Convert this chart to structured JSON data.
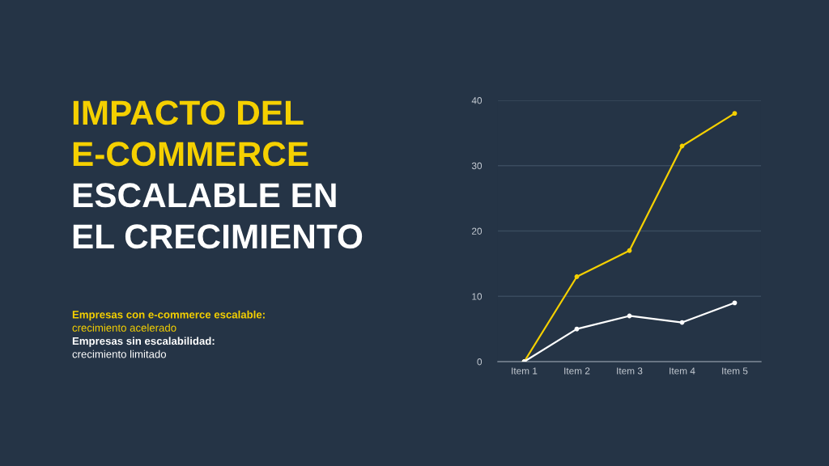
{
  "chart_data": {
    "type": "line",
    "title": "IMPACTO DEL\nE-COMMERCE\nESCALABLE EN\nEL CRECIMIENTO",
    "categories": [
      "Item 1",
      "Item 2",
      "Item 3",
      "Item 4",
      "Item 5"
    ],
    "series": [
      {
        "name": "Empresas con e-commerce escalable:",
        "color": "#f5d000",
        "values": [
          0,
          13,
          17,
          33,
          38
        ]
      },
      {
        "name": "Empresas sin escalabilidad:",
        "color": "#ffffff",
        "values": [
          0,
          5,
          7,
          6,
          9
        ]
      }
    ],
    "annotations": [
      "crecimiento acelerado",
      "crecimiento limitado"
    ],
    "ylim": [
      0,
      40
    ],
    "yticks": [
      0,
      10,
      20,
      30,
      40
    ],
    "grid": "y",
    "marker": "circle",
    "line_style": "solid"
  }
}
